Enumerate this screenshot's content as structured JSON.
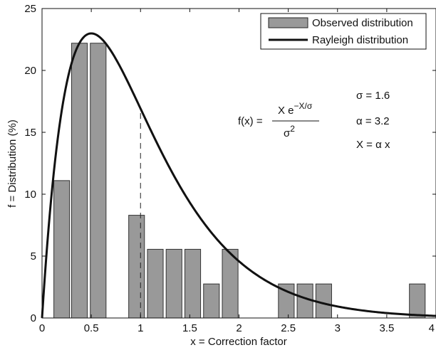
{
  "chart_data": {
    "type": "bar",
    "xlabel": "x = Correction factor",
    "ylabel": "f = Distribution (%)",
    "xlim": [
      0,
      4
    ],
    "ylim": [
      0,
      25
    ],
    "xticks": [
      0,
      0.5,
      1,
      1.5,
      2,
      2.5,
      3,
      3.5,
      4
    ],
    "xtick_labels": [
      "0",
      "0.5",
      "1",
      "1.5",
      "2",
      "2.5",
      "3",
      "3.5",
      "4"
    ],
    "yticks": [
      0,
      5,
      10,
      15,
      20,
      25
    ],
    "ytick_labels": [
      "0",
      "5",
      "10",
      "15",
      "20",
      "25"
    ],
    "bar_width": 0.16,
    "bar_color": "#999999",
    "series": [
      {
        "name": "Observed distribution",
        "type": "bar",
        "x": [
          0.2,
          0.38,
          0.57,
          0.96,
          1.15,
          1.34,
          1.53,
          1.72,
          1.91,
          2.48,
          2.67,
          2.86,
          3.81
        ],
        "values": [
          11.1,
          22.2,
          22.2,
          8.3,
          5.55,
          5.55,
          5.55,
          2.75,
          5.55,
          2.75,
          2.75,
          2.75,
          2.75
        ]
      },
      {
        "name": "Rayleigh distribution",
        "type": "line",
        "formula": "X*exp(-X/sigma)/sigma^2, X = alpha*x",
        "sigma": 1.6,
        "alpha": 3.2
      }
    ],
    "reference_line": {
      "x": 1,
      "style": "dashed"
    },
    "legend": {
      "position": "top-right",
      "entries": [
        "Observed distribution",
        "Rayleigh distribution"
      ]
    },
    "annotations": {
      "formula_lhs": "f(x) =",
      "formula_num_base": "X e",
      "formula_num_exp": "−X/σ",
      "formula_den_base": "σ",
      "formula_den_exp": "2",
      "sigma": "σ = 1.6",
      "alpha": "α = 3.2",
      "xdef": "X = α x"
    },
    "grid": false
  }
}
